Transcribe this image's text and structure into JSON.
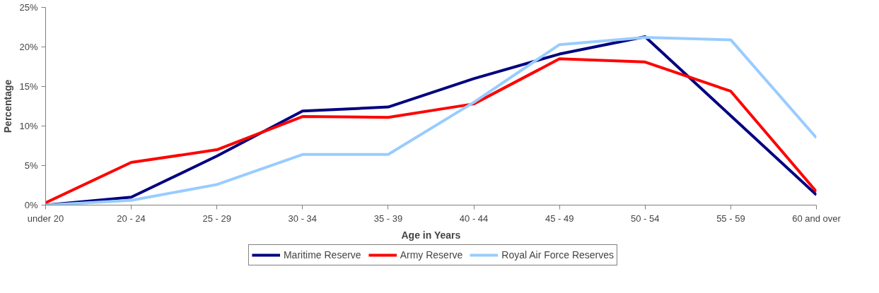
{
  "chart_data": {
    "type": "line",
    "xlabel": "Age in Years",
    "ylabel": "Percentage",
    "categories": [
      "under 20",
      "20 - 24",
      "25 - 29",
      "30 - 34",
      "35 - 39",
      "40 - 44",
      "45 - 49",
      "50 - 54",
      "55 - 59",
      "60 and over"
    ],
    "series": [
      {
        "name": "Maritime Reserve",
        "color": "#000080",
        "values": [
          0,
          1.0,
          6.2,
          11.9,
          12.4,
          16.0,
          19.1,
          21.3,
          11.3,
          1.3
        ]
      },
      {
        "name": "Army Reserve",
        "color": "#ff0000",
        "values": [
          0.3,
          5.4,
          7.0,
          11.2,
          11.1,
          12.8,
          18.5,
          18.1,
          14.4,
          1.7
        ]
      },
      {
        "name": "Royal Air Force Reserves",
        "color": "#99ccff",
        "values": [
          0,
          0.6,
          2.6,
          6.4,
          6.4,
          13.0,
          20.3,
          21.2,
          20.9,
          8.5
        ]
      }
    ],
    "ylim": [
      0,
      25
    ],
    "yticks": [
      {
        "value": 0,
        "label": "0%"
      },
      {
        "value": 5,
        "label": "5%"
      },
      {
        "value": 10,
        "label": "10%"
      },
      {
        "value": 15,
        "label": "15%"
      },
      {
        "value": 20,
        "label": "20%"
      },
      {
        "value": 25,
        "label": "25%"
      }
    ],
    "grid": false,
    "legend": "bottom",
    "marker": "none",
    "line_style": "solid"
  }
}
